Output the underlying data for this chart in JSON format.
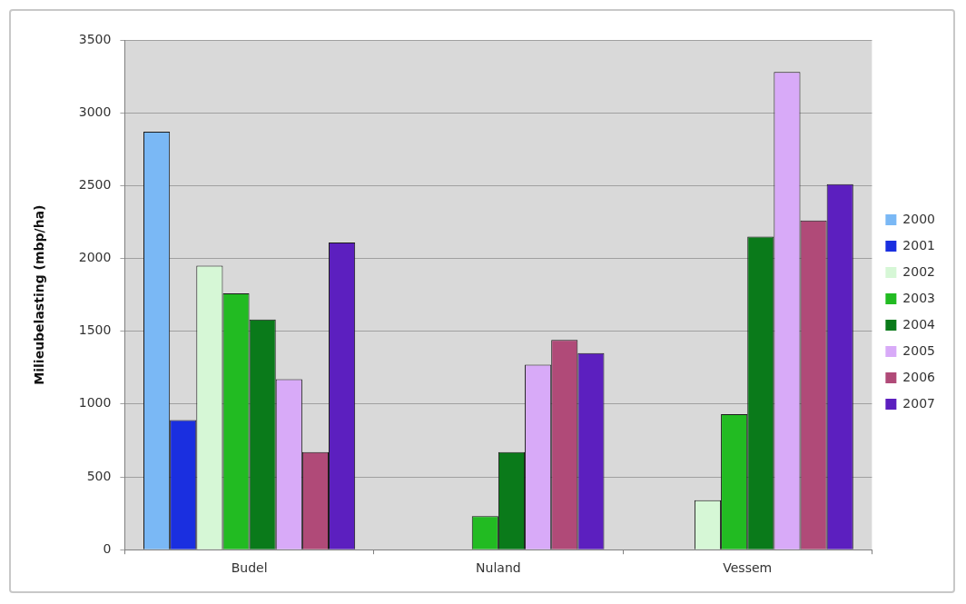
{
  "chart_data": {
    "type": "bar",
    "ylabel": "Milieubelasting (mbp/ha)",
    "categories": [
      "Budel",
      "Nuland",
      "Vessem"
    ],
    "series": [
      {
        "name": "2000",
        "color": "#7ab8f5",
        "values": [
          2870,
          null,
          null
        ]
      },
      {
        "name": "2001",
        "color": "#1a2fe0",
        "values": [
          890,
          null,
          null
        ]
      },
      {
        "name": "2002",
        "color": "#d6f7d6",
        "values": [
          1950,
          null,
          340
        ]
      },
      {
        "name": "2003",
        "color": "#22bb22",
        "values": [
          1760,
          230,
          930
        ]
      },
      {
        "name": "2004",
        "color": "#0a7a1a",
        "values": [
          1580,
          670,
          2150
        ]
      },
      {
        "name": "2005",
        "color": "#d8aaf8",
        "values": [
          1170,
          1270,
          3280
        ]
      },
      {
        "name": "2006",
        "color": "#b04a78",
        "values": [
          670,
          1440,
          2260
        ]
      },
      {
        "name": "2007",
        "color": "#5c1fbf",
        "values": [
          2110,
          1350,
          2510
        ]
      }
    ],
    "ylim": [
      0,
      3500
    ],
    "yticks": [
      0,
      500,
      1000,
      1500,
      2000,
      2500,
      3000,
      3500
    ],
    "grid": "y",
    "legend": "right"
  }
}
